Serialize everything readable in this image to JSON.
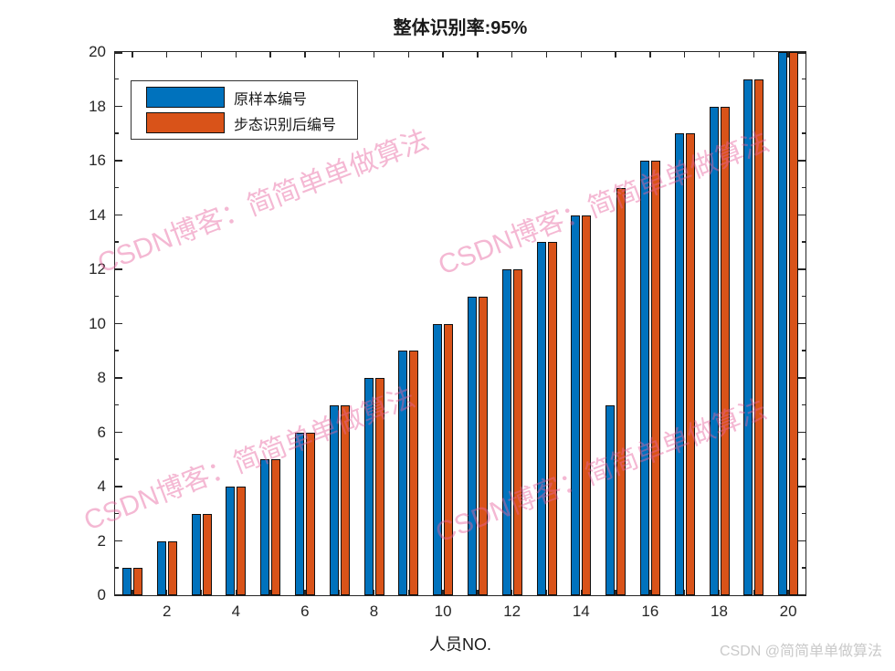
{
  "title": "整体识别率:95%",
  "xlabel": "人员NO.",
  "legend": {
    "series1_label": "原样本编号",
    "series2_label": "步态识别后编号"
  },
  "watermark": {
    "diagonal_text": "CSDN博客：简简单单做算法",
    "corner_text": "CSDN @简简单单做算法"
  },
  "colors": {
    "series1": "#0072BD",
    "series2": "#D95319",
    "axis": "#262626",
    "watermark_pink": "#E8649E",
    "corner_gray": "#c9c9c9"
  },
  "chart_data": {
    "type": "bar",
    "title": "整体识别率:95%",
    "xlabel": "人员NO.",
    "ylabel": "",
    "categories": [
      1,
      2,
      3,
      4,
      5,
      6,
      7,
      8,
      9,
      10,
      11,
      12,
      13,
      14,
      15,
      16,
      17,
      18,
      19,
      20
    ],
    "series": [
      {
        "name": "原样本编号",
        "color": "#0072BD",
        "values": [
          1,
          2,
          3,
          4,
          5,
          6,
          7,
          8,
          9,
          10,
          11,
          12,
          13,
          14,
          7,
          16,
          17,
          18,
          19,
          20
        ]
      },
      {
        "name": "步态识别后编号",
        "color": "#D95319",
        "values": [
          1,
          2,
          3,
          4,
          5,
          6,
          7,
          8,
          9,
          10,
          11,
          12,
          13,
          14,
          15,
          16,
          17,
          18,
          19,
          20
        ]
      }
    ],
    "ylim": [
      0,
      20
    ],
    "ytick_labeled": [
      0,
      2,
      4,
      6,
      8,
      10,
      12,
      14,
      16,
      18,
      20
    ],
    "ytick_minor": [
      1,
      3,
      5,
      7,
      9,
      11,
      13,
      15,
      17,
      19
    ],
    "xtick_labeled": [
      2,
      4,
      6,
      8,
      10,
      12,
      14,
      16,
      18,
      20
    ],
    "grid": false,
    "legend_position": "upper-left-inside"
  }
}
